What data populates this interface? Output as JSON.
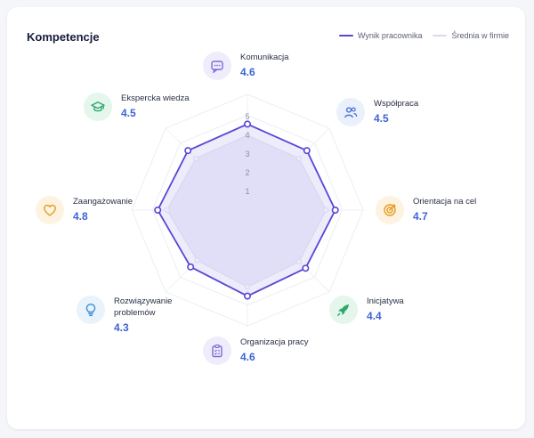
{
  "header": {
    "title": "Kompetencje"
  },
  "legend": {
    "employee": "Wynik pracownika",
    "company": "Średnia w firmie"
  },
  "colors": {
    "employee": "#5846d6",
    "company": "#d9dcef",
    "area": "#e3e1f8",
    "value": "#3d63d6"
  },
  "competencies": [
    {
      "label": "Komunikacja",
      "value": "4.6",
      "icon": "chat-icon",
      "icon_color": "#7c6cd9",
      "icon_bg": "#efedfb"
    },
    {
      "label": "Współpraca",
      "value": "4.5",
      "icon": "users-icon",
      "icon_color": "#4a73d6",
      "icon_bg": "#eaf1fc"
    },
    {
      "label": "Orientacja na cel",
      "value": "4.7",
      "icon": "target-icon",
      "icon_color": "#e69a1e",
      "icon_bg": "#fdf3e0"
    },
    {
      "label": "Inicjatywa",
      "value": "4.4",
      "icon": "rocket-icon",
      "icon_color": "#2fa86a",
      "icon_bg": "#e5f6ec"
    },
    {
      "label": "Organizacja pracy",
      "value": "4.6",
      "icon": "clipboard-icon",
      "icon_color": "#7c6cd9",
      "icon_bg": "#efedfb"
    },
    {
      "label": "Rozwiązywanie problemów",
      "value": "4.3",
      "icon": "lightbulb-icon",
      "icon_color": "#3d8fd6",
      "icon_bg": "#e8f3fc"
    },
    {
      "label": "Zaangażowanie",
      "value": "4.8",
      "icon": "heart-icon",
      "icon_color": "#e69a1e",
      "icon_bg": "#fdf3e0"
    },
    {
      "label": "Ekspercka wiedza",
      "value": "4.5",
      "icon": "graduation-cap-icon",
      "icon_color": "#2fa86a",
      "icon_bg": "#e5f6ec"
    }
  ],
  "chart_data": {
    "type": "radar",
    "categories": [
      "Komunikacja",
      "Współpraca",
      "Orientacja na cel",
      "Inicjatywa",
      "Organizacja pracy",
      "Rozwiązywanie problemów",
      "Zaangażowanie",
      "Ekspercka wiedza"
    ],
    "series": [
      {
        "name": "Wynik pracownika",
        "values": [
          4.6,
          4.5,
          4.7,
          4.4,
          4.6,
          4.3,
          4.8,
          4.5
        ]
      },
      {
        "name": "Średnia w firmie",
        "values": [
          4.0,
          3.9,
          4.2,
          3.9,
          4.1,
          3.8,
          4.3,
          3.9
        ]
      }
    ],
    "radial_ticks": [
      "1",
      "2",
      "3",
      "4",
      "5"
    ],
    "rlim": [
      0,
      5
    ],
    "legend_position": "top-right"
  }
}
